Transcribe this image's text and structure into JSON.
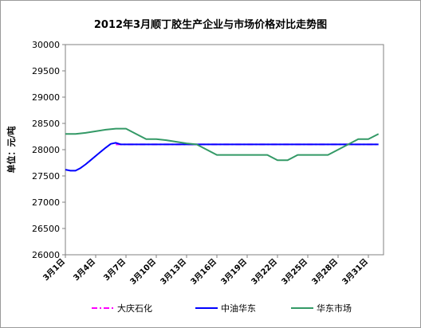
{
  "chart_data": {
    "type": "line",
    "title": "2012年3月顺丁胶生产企业与市场价格对比走势图",
    "ylabel": "单位：元/吨",
    "ylim": [
      26000,
      30000
    ],
    "yticks": [
      26000,
      26500,
      27000,
      27500,
      28000,
      28500,
      29000,
      29500,
      30000
    ],
    "xlim": [
      1,
      32.5
    ],
    "grid": false,
    "legend_position": "bottom",
    "x_tick_days": [
      1,
      4,
      7,
      10,
      13,
      16,
      19,
      22,
      25,
      28,
      31
    ],
    "x_tick_labels": [
      "3月1日",
      "3月4日",
      "3月7日",
      "3月10日",
      "3月13日",
      "3月16日",
      "3月19日",
      "3月22日",
      "3月25日",
      "3月28日",
      "3月31日"
    ],
    "series": [
      {
        "name": "大庆石化",
        "color": "#ff00ff",
        "style": "dash-dot",
        "x": [
          6,
          32
        ],
        "y": [
          28100,
          28100
        ]
      },
      {
        "name": "中油华东",
        "color": "#0000ff",
        "style": "solid",
        "x": [
          1,
          1.5,
          2,
          2.5,
          3,
          3.5,
          4,
          4.5,
          5,
          5.5,
          6,
          6.5,
          7,
          8,
          10,
          13,
          16,
          19,
          22,
          25,
          28,
          31,
          32
        ],
        "y": [
          27620,
          27600,
          27600,
          27650,
          27720,
          27800,
          27880,
          27960,
          28040,
          28110,
          28130,
          28100,
          28100,
          28100,
          28100,
          28100,
          28100,
          28100,
          28100,
          28100,
          28100,
          28100,
          28100
        ]
      },
      {
        "name": "华东市场",
        "color": "#339966",
        "style": "solid",
        "x": [
          1,
          2,
          3,
          4,
          5,
          6,
          7,
          8,
          9,
          10,
          11,
          12,
          13,
          14,
          15,
          16,
          17,
          18,
          19,
          20,
          21,
          22,
          23,
          24,
          25,
          26,
          27,
          28,
          29,
          30,
          31,
          32
        ],
        "y": [
          28300,
          28300,
          28320,
          28350,
          28380,
          28400,
          28400,
          28300,
          28200,
          28200,
          28180,
          28150,
          28120,
          28100,
          28000,
          27900,
          27900,
          27900,
          27900,
          27900,
          27900,
          27800,
          27800,
          27900,
          27900,
          27900,
          27900,
          28000,
          28100,
          28200,
          28200,
          28300
        ]
      }
    ]
  }
}
